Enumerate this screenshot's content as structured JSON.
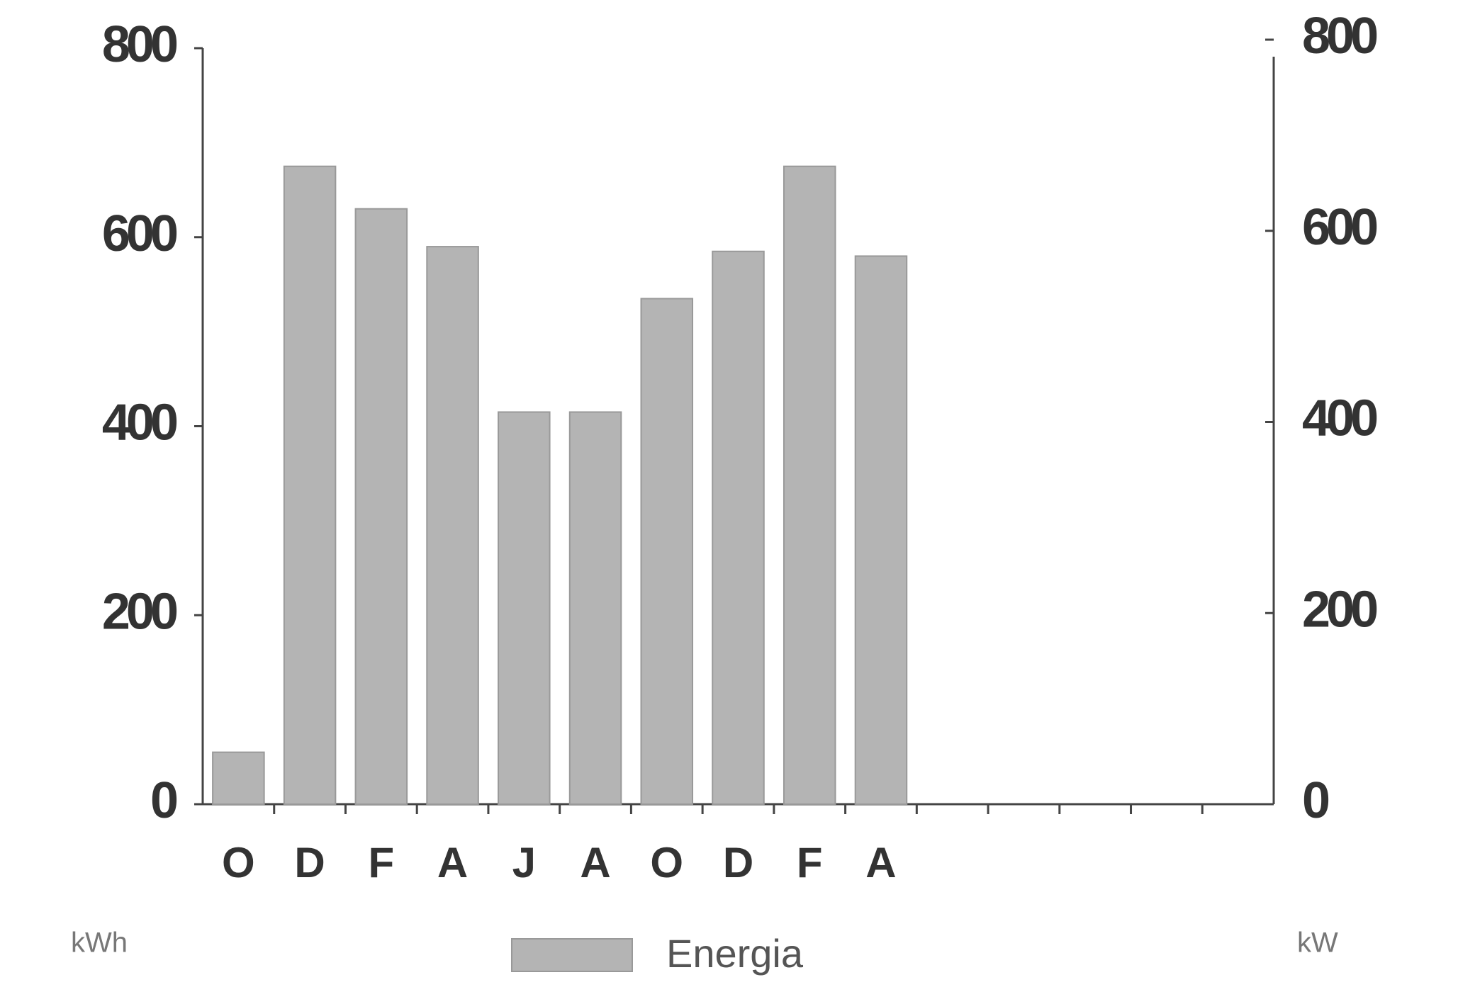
{
  "chart_data": {
    "type": "bar",
    "categories": [
      "O",
      "D",
      "F",
      "A",
      "J",
      "A",
      "O",
      "D",
      "F",
      "A",
      null,
      null,
      null,
      null,
      null
    ],
    "series": [
      {
        "name": "Energia",
        "color": "#b4b4b4",
        "values": [
          55,
          675,
          630,
          590,
          415,
          415,
          535,
          585,
          675,
          580,
          null,
          null,
          null,
          null,
          null
        ]
      }
    ],
    "ylim": [
      0,
      800
    ],
    "yticks": [
      0,
      200,
      400,
      600,
      800
    ],
    "y2lim": [
      0,
      800
    ],
    "y2ticks": [
      0,
      200,
      400,
      600,
      800
    ],
    "y_label": "kWh",
    "y2_label": "kW",
    "legend": "bottom",
    "grid": false
  }
}
